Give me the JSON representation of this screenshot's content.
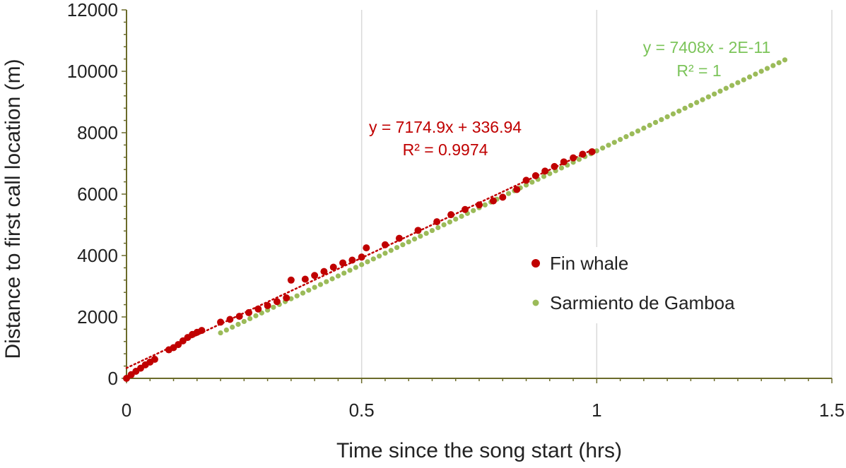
{
  "chart_data": {
    "type": "scatter",
    "xlabel": "Time since the song start (hrs)",
    "ylabel": "Distance to first call location (m)",
    "xlim": [
      0,
      1.5
    ],
    "ylim": [
      0,
      12000
    ],
    "x_ticks": [
      "0",
      "0.5",
      "1",
      "1.5"
    ],
    "y_ticks": [
      "0",
      "2000",
      "4000",
      "6000",
      "8000",
      "10000",
      "12000"
    ],
    "grid": "vertical",
    "legend_position": "center-right",
    "series": [
      {
        "name": "Fin whale",
        "color": "#c00000",
        "points": [
          [
            0.0,
            0
          ],
          [
            0.01,
            120
          ],
          [
            0.02,
            230
          ],
          [
            0.03,
            330
          ],
          [
            0.04,
            440
          ],
          [
            0.05,
            530
          ],
          [
            0.06,
            620
          ],
          [
            0.09,
            930
          ],
          [
            0.1,
            1000
          ],
          [
            0.11,
            1100
          ],
          [
            0.12,
            1220
          ],
          [
            0.13,
            1330
          ],
          [
            0.14,
            1430
          ],
          [
            0.15,
            1500
          ],
          [
            0.16,
            1560
          ],
          [
            0.2,
            1830
          ],
          [
            0.22,
            1920
          ],
          [
            0.24,
            2020
          ],
          [
            0.26,
            2140
          ],
          [
            0.28,
            2260
          ],
          [
            0.3,
            2370
          ],
          [
            0.32,
            2500
          ],
          [
            0.34,
            2620
          ],
          [
            0.35,
            3200
          ],
          [
            0.38,
            3230
          ],
          [
            0.4,
            3350
          ],
          [
            0.42,
            3480
          ],
          [
            0.44,
            3620
          ],
          [
            0.46,
            3760
          ],
          [
            0.48,
            3850
          ],
          [
            0.5,
            3950
          ],
          [
            0.51,
            4250
          ],
          [
            0.55,
            4350
          ],
          [
            0.58,
            4560
          ],
          [
            0.62,
            4820
          ],
          [
            0.66,
            5100
          ],
          [
            0.69,
            5330
          ],
          [
            0.72,
            5500
          ],
          [
            0.75,
            5650
          ],
          [
            0.78,
            5780
          ],
          [
            0.8,
            5900
          ],
          [
            0.83,
            6150
          ],
          [
            0.85,
            6450
          ],
          [
            0.87,
            6600
          ],
          [
            0.89,
            6750
          ],
          [
            0.91,
            6900
          ],
          [
            0.93,
            7050
          ],
          [
            0.95,
            7180
          ],
          [
            0.97,
            7300
          ],
          [
            0.99,
            7380
          ]
        ],
        "trendline": {
          "slope": 7174.9,
          "intercept": 336.94,
          "x_range": [
            0,
            0.99
          ]
        },
        "equation": "y = 7174.9x + 336.94",
        "r2": "R² = 0.9974"
      },
      {
        "name": "Sarmiento de Gamboa",
        "color": "#9bbb59",
        "line": {
          "slope": 7408,
          "intercept": 0,
          "x_range": [
            0.2,
            1.405
          ],
          "step": 0.0125
        },
        "trendline": {
          "slope": 7408,
          "intercept": 0
        },
        "equation": "y = 7408x - 2E-11",
        "r2": "R² = 1"
      }
    ]
  }
}
